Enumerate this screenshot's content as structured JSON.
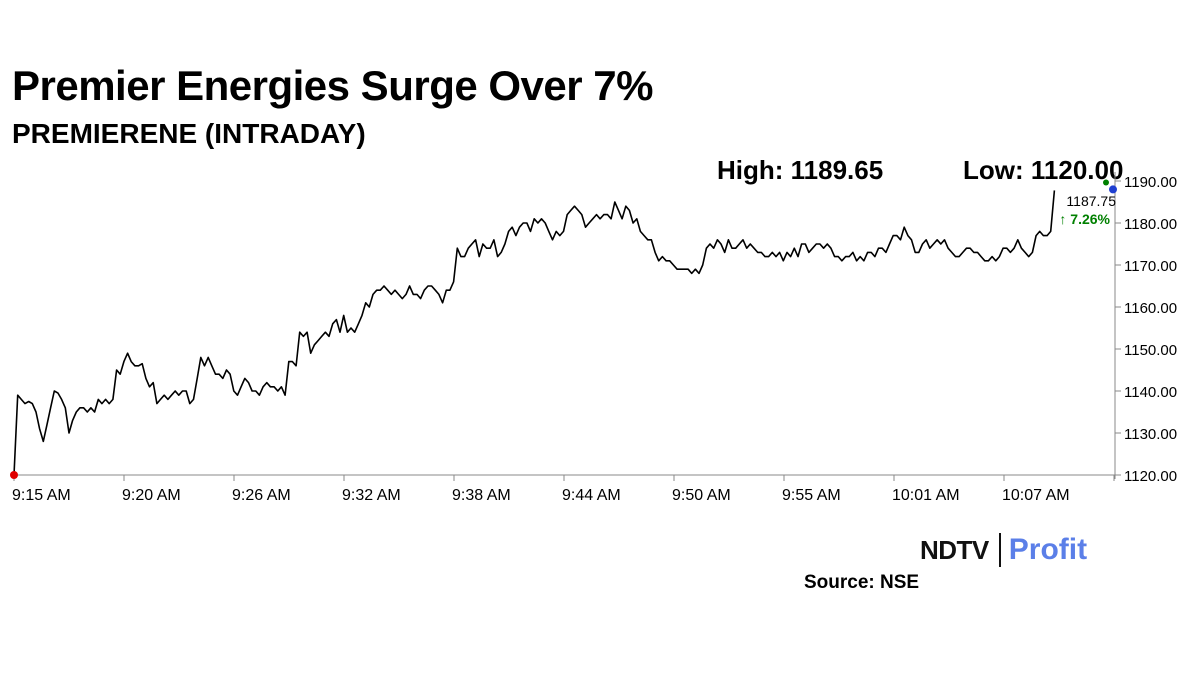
{
  "header": {
    "title": "Premier Energies Surge Over 7%",
    "subtitle": "PREMIERENE (INTRADAY)",
    "high_text": "High: 1189.65",
    "low_text": "Low: 1120.00"
  },
  "last_point": {
    "price_label": "1187.75",
    "change_label": "↑ 7.26%",
    "change_color": "#008000",
    "start_marker_color": "#e00000",
    "end_marker_color": "#008000",
    "high_marker_color": "#1f3fd0"
  },
  "footer": {
    "logo_text_left": "NDTV",
    "logo_text_right": "Profit",
    "logo_dot_color": "#e00000",
    "logo_accent_color": "#5b7fe8",
    "source": "Source: NSE"
  },
  "chart_data": {
    "type": "line",
    "title": "Premier Energies Surge Over 7%",
    "subtitle": "PREMIERENE (INTRADAY)",
    "xlabel": "",
    "ylabel": "",
    "ylim": [
      1120,
      1190
    ],
    "y_ticks": [
      "1120.00",
      "1130.00",
      "1140.00",
      "1150.00",
      "1160.00",
      "1170.00",
      "1180.00",
      "1190.00"
    ],
    "x_ticks": [
      "9:15 AM",
      "9:20 AM",
      "9:26 AM",
      "9:32 AM",
      "9:38 AM",
      "9:44 AM",
      "9:50 AM",
      "9:55 AM",
      "10:01 AM",
      "10:07 AM"
    ],
    "grid": false,
    "line_color": "#000000",
    "series": [
      {
        "values": [
          1120,
          1139,
          1138,
          1137,
          1137.5,
          1137,
          1135,
          1131,
          1128,
          1132,
          1136,
          1140,
          1139.5,
          1138,
          1136,
          1130,
          1133,
          1135,
          1136,
          1136,
          1135,
          1136,
          1135,
          1138,
          1137,
          1138,
          1137,
          1138,
          1145,
          1144,
          1147,
          1149,
          1147,
          1146,
          1146,
          1146.5,
          1143,
          1141,
          1142,
          1137,
          1138,
          1139,
          1138,
          1139,
          1140,
          1139,
          1140,
          1140,
          1137,
          1138,
          1143,
          1148,
          1146,
          1148,
          1146,
          1144,
          1144,
          1143,
          1145,
          1144,
          1140,
          1139,
          1141,
          1143,
          1142,
          1140,
          1140,
          1139,
          1141,
          1142,
          1141,
          1141,
          1140,
          1141,
          1139,
          1147,
          1147,
          1146,
          1154,
          1153,
          1154,
          1149,
          1151,
          1152,
          1153,
          1154,
          1153,
          1156,
          1157,
          1154,
          1158,
          1154,
          1155,
          1154,
          1156,
          1158,
          1161,
          1160,
          1163,
          1164,
          1164,
          1165,
          1164,
          1163,
          1164,
          1163,
          1162,
          1163,
          1165,
          1163,
          1163,
          1162,
          1164,
          1165,
          1165,
          1164,
          1163,
          1161,
          1164,
          1164,
          1166,
          1174,
          1172,
          1172,
          1174,
          1175,
          1176,
          1172,
          1175,
          1174,
          1174,
          1176,
          1172,
          1173,
          1175,
          1178,
          1179,
          1177,
          1179,
          1180,
          1180,
          1178,
          1181,
          1180,
          1181,
          1180,
          1178,
          1176,
          1178,
          1177,
          1178,
          1182,
          1183,
          1184,
          1183,
          1182,
          1179,
          1180,
          1181,
          1182,
          1181,
          1182,
          1182,
          1181,
          1185,
          1183,
          1181,
          1184,
          1183,
          1180,
          1181,
          1178,
          1177,
          1176,
          1176,
          1173,
          1171,
          1172,
          1171,
          1171,
          1170,
          1169,
          1169,
          1169,
          1169,
          1168,
          1169,
          1168,
          1170,
          1174,
          1175,
          1174,
          1176,
          1175,
          1173,
          1176,
          1174,
          1174,
          1175,
          1176,
          1174,
          1175,
          1174,
          1173,
          1173,
          1172,
          1172,
          1173,
          1172,
          1173,
          1171,
          1173,
          1172,
          1174,
          1172,
          1175,
          1175,
          1173,
          1174,
          1175,
          1175,
          1174,
          1175,
          1174,
          1172,
          1172,
          1171,
          1172,
          1172,
          1173,
          1171,
          1172,
          1171,
          1173,
          1173,
          1172,
          1174,
          1174,
          1173,
          1175,
          1177,
          1177,
          1176,
          1179,
          1177,
          1176,
          1173,
          1173,
          1175,
          1176,
          1174,
          1175,
          1176,
          1175,
          1176,
          1174,
          1173,
          1172,
          1172,
          1173,
          1174,
          1174,
          1173,
          1173,
          1172,
          1171,
          1171,
          1172,
          1171,
          1172,
          1174,
          1174,
          1173,
          1174,
          1176,
          1174,
          1173,
          1172,
          1173,
          1177,
          1178,
          1177,
          1177,
          1178,
          1187.75
        ]
      }
    ]
  }
}
